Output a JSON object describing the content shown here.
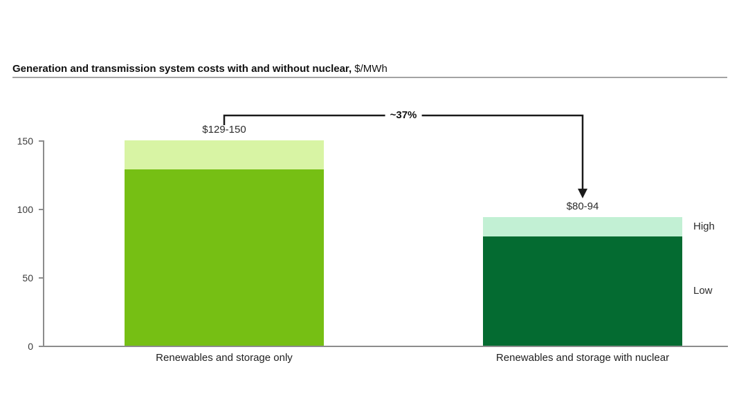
{
  "title": {
    "text": "Generation and transmission system costs with and without nuclear,",
    "unit": " $/MWh"
  },
  "chart_data": {
    "type": "bar",
    "stacked": true,
    "title": "Generation and transmission system costs with and without nuclear",
    "unit": "$/MWh",
    "categories": [
      "Renewables and storage only",
      "Renewables and storage with nuclear"
    ],
    "bars": [
      {
        "category": "Renewables and storage only",
        "low": 129,
        "high": 150,
        "range_label": "$129-150",
        "low_color": "#76bf14",
        "high_color": "#d8f4a4"
      },
      {
        "category": "Renewables and storage with nuclear",
        "low": 80,
        "high": 94,
        "range_label": "$80-94",
        "low_color": "#046b31",
        "high_color": "#c2f0d4"
      }
    ],
    "ylim": [
      0,
      150
    ],
    "yticks": [
      0,
      50,
      100,
      150
    ],
    "grid": false,
    "legend_position": "right-of-second-bar",
    "annotation": {
      "text": "~37%"
    },
    "segment_labels": {
      "high": "High",
      "low": "Low"
    }
  }
}
